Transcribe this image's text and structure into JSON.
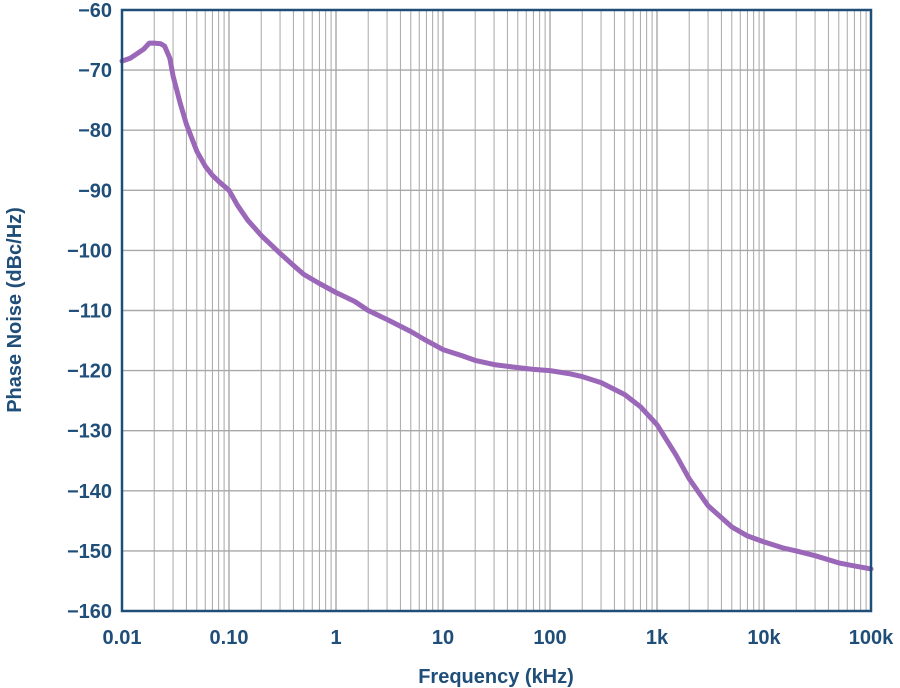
{
  "chart_data": {
    "type": "line",
    "xlabel": "Frequency (kHz)",
    "ylabel": "Phase Noise (dBc/Hz)",
    "xscale": "log",
    "xlim": [
      0.01,
      100000
    ],
    "ylim": [
      -160,
      -60
    ],
    "grid": true,
    "x_tick_labels": [
      "0.01",
      "0.10",
      "1",
      "10",
      "100",
      "1k",
      "10k",
      "100k"
    ],
    "y_tick_labels": [
      "−60",
      "−70",
      "−80",
      "−90",
      "−100",
      "−110",
      "−120",
      "−130",
      "−140",
      "−150",
      "−160"
    ],
    "colors": {
      "series": "#9b67b8",
      "axis": "#1f4e79",
      "grid": "#a8a8a8",
      "text": "#1f4e79"
    },
    "series": [
      {
        "x": [
          0.01,
          0.012,
          0.014,
          0.016,
          0.018,
          0.02,
          0.023,
          0.025,
          0.028,
          0.03,
          0.035,
          0.04,
          0.05,
          0.06,
          0.07,
          0.08,
          0.1,
          0.12,
          0.15,
          0.2,
          0.3,
          0.4,
          0.5,
          0.7,
          1,
          1.5,
          2,
          3,
          5,
          7,
          10,
          15,
          20,
          30,
          50,
          70,
          100,
          150,
          200,
          300,
          500,
          700,
          1000,
          1500,
          2000,
          3000,
          5000,
          7000,
          10000,
          15000,
          20000,
          30000,
          50000,
          70000,
          100000
        ],
        "y": [
          -68.5,
          -68,
          -67.2,
          -66.5,
          -65.5,
          -65.5,
          -65.6,
          -66,
          -68,
          -71,
          -75.5,
          -79,
          -83.5,
          -86,
          -87.5,
          -88.5,
          -90,
          -92.5,
          -95,
          -97.5,
          -100.5,
          -102.5,
          -104,
          -105.5,
          -107,
          -108.5,
          -110,
          -111.5,
          -113.5,
          -115,
          -116.5,
          -117.5,
          -118.3,
          -119,
          -119.5,
          -119.8,
          -120,
          -120.5,
          -121,
          -122,
          -124,
          -126,
          -129,
          -134,
          -138,
          -142.5,
          -146,
          -147.5,
          -148.5,
          -149.5,
          -150,
          -150.8,
          -152,
          -152.5,
          -153
        ]
      }
    ]
  }
}
